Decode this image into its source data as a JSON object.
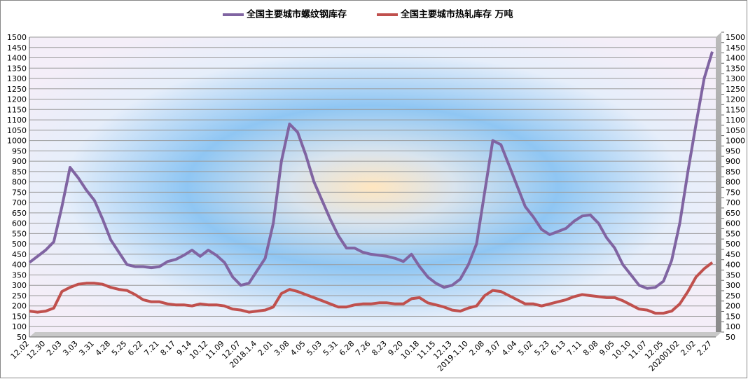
{
  "chart_data": {
    "type": "line",
    "categories": [
      "12.02",
      null,
      "12.30",
      null,
      "2.03",
      null,
      "3.03",
      null,
      "3.31",
      null,
      "4.28",
      null,
      "5.25",
      null,
      "6.22",
      null,
      "7.21",
      null,
      "8.17",
      null,
      "9.14",
      null,
      "10.12",
      null,
      "11.09",
      null,
      "12.07",
      null,
      "2018.1.4",
      null,
      "2.01",
      null,
      "3.08",
      null,
      "4.05",
      null,
      "5.03",
      null,
      "5.31",
      null,
      "6.28",
      null,
      "7.26",
      null,
      "8.23",
      null,
      "9.20",
      null,
      "10.18",
      null,
      "11.15",
      null,
      "12.13",
      null,
      "2019.1.10",
      null,
      "2.08",
      null,
      "3.07",
      null,
      "4.04",
      null,
      "5.02",
      null,
      "5.23",
      null,
      "6.13",
      null,
      "7.11",
      null,
      "8.08",
      null,
      "9.05",
      null,
      "10.10",
      null,
      "11.07",
      null,
      "12.05",
      null,
      "20200102",
      null,
      "2.02",
      null,
      "2.27"
    ],
    "series": [
      {
        "name": "全国主要城市螺纹钢库存",
        "color": "#8064a2",
        "values": [
          410,
          440,
          470,
          510,
          680,
          870,
          820,
          760,
          710,
          620,
          520,
          460,
          400,
          390,
          390,
          385,
          390,
          415,
          425,
          445,
          470,
          440,
          470,
          445,
          410,
          340,
          300,
          310,
          370,
          430,
          600,
          900,
          1080,
          1040,
          930,
          800,
          710,
          620,
          540,
          480,
          480,
          460,
          450,
          445,
          440,
          430,
          415,
          450,
          390,
          340,
          310,
          290,
          300,
          330,
          400,
          500,
          750,
          1000,
          980,
          880,
          780,
          680,
          630,
          570,
          545,
          560,
          575,
          610,
          635,
          640,
          600,
          530,
          480,
          400,
          350,
          300,
          285,
          290,
          320,
          420,
          600,
          850,
          1080,
          1300,
          1430
        ]
      },
      {
        "name": "全国主要城市热轧库存 万吨",
        "color": "#c0504d",
        "values": [
          175,
          170,
          175,
          190,
          270,
          290,
          305,
          310,
          310,
          305,
          290,
          280,
          275,
          255,
          230,
          220,
          220,
          210,
          205,
          205,
          200,
          210,
          205,
          205,
          200,
          185,
          180,
          170,
          175,
          180,
          195,
          260,
          280,
          270,
          255,
          240,
          225,
          210,
          195,
          195,
          205,
          210,
          210,
          215,
          215,
          210,
          210,
          235,
          240,
          215,
          205,
          195,
          180,
          175,
          190,
          200,
          250,
          275,
          270,
          250,
          230,
          210,
          210,
          200,
          210,
          220,
          230,
          245,
          255,
          250,
          245,
          240,
          240,
          225,
          205,
          185,
          180,
          165,
          165,
          175,
          210,
          270,
          340,
          380,
          410
        ]
      }
    ],
    "ylim": [
      50,
      1500
    ],
    "yticks": [
      50,
      100,
      150,
      200,
      250,
      300,
      350,
      400,
      450,
      500,
      550,
      600,
      650,
      700,
      750,
      800,
      850,
      900,
      950,
      1000,
      1050,
      1100,
      1150,
      1200,
      1250,
      1300,
      1350,
      1400,
      1450,
      1500
    ],
    "y2lim": [
      50,
      1500
    ],
    "y2ticks": [
      50,
      100,
      150,
      200,
      250,
      300,
      350,
      400,
      450,
      500,
      550,
      600,
      650,
      700,
      750,
      800,
      850,
      900,
      950,
      1000,
      1050,
      1100,
      1150,
      1200,
      1250,
      1300,
      1350,
      1400,
      1450,
      1500
    ],
    "grid": true,
    "legend": "top"
  }
}
